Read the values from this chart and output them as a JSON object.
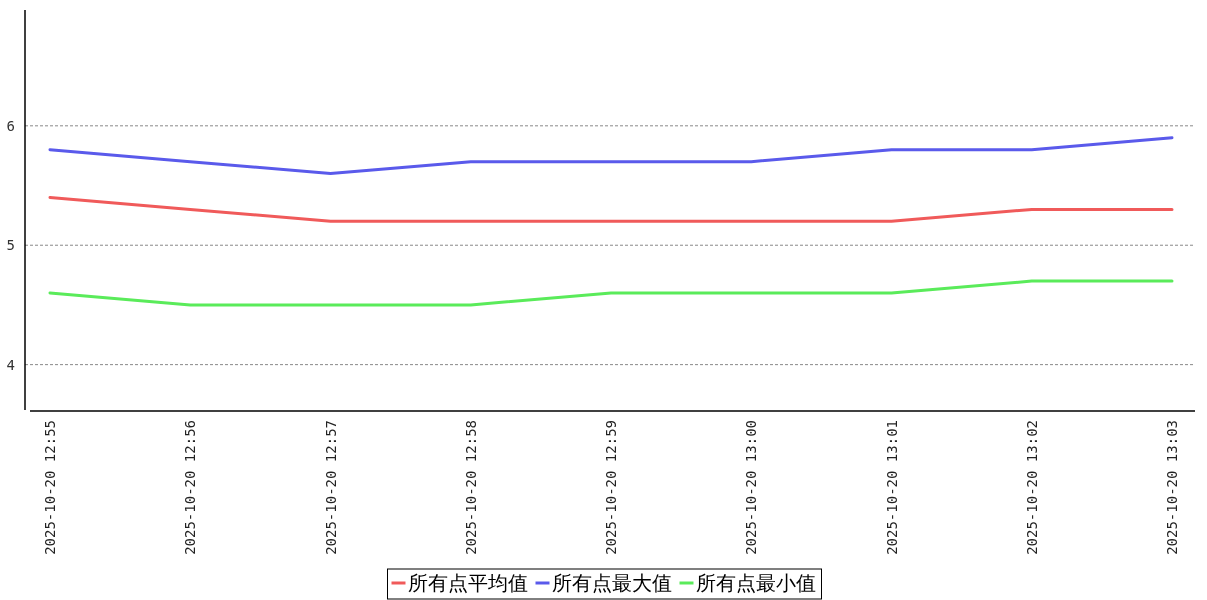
{
  "chart_data": {
    "type": "line",
    "categories": [
      "2025-10-20 12:55",
      "2025-10-20 12:56",
      "2025-10-20 12:57",
      "2025-10-20 12:58",
      "2025-10-20 12:59",
      "2025-10-20 13:00",
      "2025-10-20 13:01",
      "2025-10-20 13:02",
      "2025-10-20 13:03"
    ],
    "series": [
      {
        "name": "所有点平均值",
        "color": "#f05a5a",
        "values": [
          5.4,
          5.3,
          5.2,
          5.2,
          5.2,
          5.2,
          5.2,
          5.3,
          5.3
        ]
      },
      {
        "name": "所有点最大值",
        "color": "#5a5aeb",
        "values": [
          5.8,
          5.7,
          5.6,
          5.7,
          5.7,
          5.7,
          5.8,
          5.8,
          5.9
        ]
      },
      {
        "name": "所有点最小值",
        "color": "#5aeb5a",
        "values": [
          4.6,
          4.5,
          4.5,
          4.5,
          4.6,
          4.6,
          4.6,
          4.7,
          4.7
        ]
      }
    ],
    "ylim": [
      3.62,
      6.97
    ],
    "yticks": [
      4,
      5,
      6
    ],
    "grid": "y",
    "legend": "bottom",
    "marker": "none",
    "line_style": "solid"
  }
}
